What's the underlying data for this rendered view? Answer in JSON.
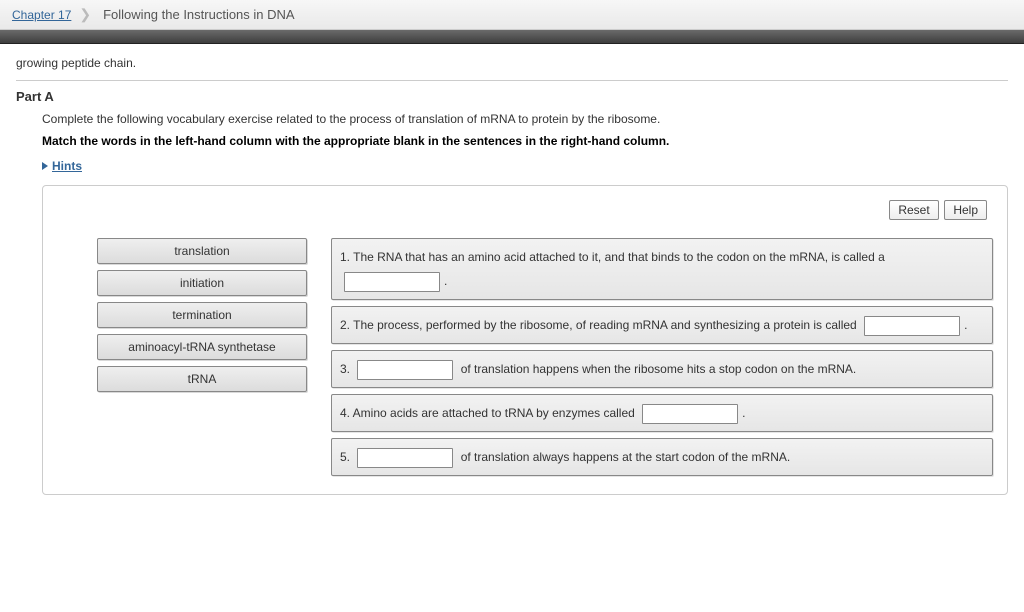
{
  "breadcrumb": {
    "chapter_link": "Chapter 17",
    "page_title": "Following the Instructions in DNA"
  },
  "pre_text": "growing peptide chain.",
  "part": {
    "heading": "Part A",
    "instruction1": "Complete the following vocabulary exercise related to the process of translation of mRNA to protein by the ribosome.",
    "instruction2": "Match the words in the left-hand column with the appropriate blank in the sentences in the right-hand column.",
    "hints_label": "Hints"
  },
  "buttons": {
    "reset": "Reset",
    "help": "Help"
  },
  "words": [
    "translation",
    "initiation",
    "termination",
    "aminoacyl-tRNA synthetase",
    "tRNA"
  ],
  "sentences": {
    "s1a": "1. The RNA that has an amino acid attached to it, and that binds to the codon on the mRNA, is called a",
    "s1b": ".",
    "s2a": "2. The process, performed by the ribosome, of reading mRNA and synthesizing a protein is called",
    "s2b": ".",
    "s3a": "3.",
    "s3b": "of translation happens when the ribosome hits a stop codon on the mRNA.",
    "s4a": "4. Amino acids are attached to tRNA by enzymes called",
    "s4b": ".",
    "s5a": "5.",
    "s5b": "of translation always happens at the start codon of the mRNA."
  },
  "colors": {
    "link": "#336699",
    "bar_grad_top": "#f7f7f7",
    "bar_grad_bot": "#e9e9e9",
    "dark_band_top": "#6a6a6a",
    "dark_band_bot": "#3e3e3e",
    "tile_border": "#888888",
    "tile_bg_top": "#efefef",
    "tile_bg_bot": "#dcdcdc",
    "outer_border": "#cccccc"
  }
}
